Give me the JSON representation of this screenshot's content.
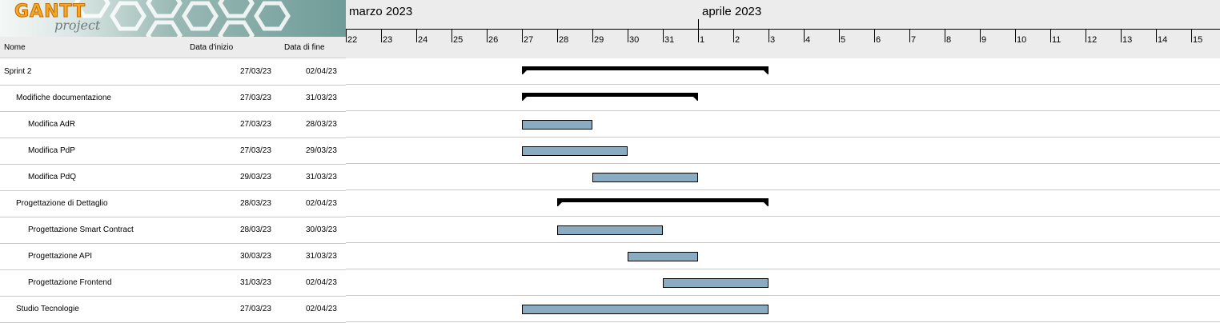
{
  "logo": {
    "word1": "GANTT",
    "word2": "project"
  },
  "table": {
    "headers": {
      "name": "Nome",
      "start": "Data d'inizio",
      "end": "Data di fine"
    },
    "rows": [
      {
        "name": "Sprint 2",
        "start": "27/03/23",
        "end": "02/04/23",
        "level": 0,
        "summary": true
      },
      {
        "name": "Modifiche documentazione",
        "start": "27/03/23",
        "end": "31/03/23",
        "level": 1,
        "summary": true
      },
      {
        "name": "Modifica AdR",
        "start": "27/03/23",
        "end": "28/03/23",
        "level": 2,
        "summary": false
      },
      {
        "name": "Modifica PdP",
        "start": "27/03/23",
        "end": "29/03/23",
        "level": 2,
        "summary": false
      },
      {
        "name": "Modifica PdQ",
        "start": "29/03/23",
        "end": "31/03/23",
        "level": 2,
        "summary": false
      },
      {
        "name": "Progettazione di Dettaglio",
        "start": "28/03/23",
        "end": "02/04/23",
        "level": 1,
        "summary": true
      },
      {
        "name": "Progettazione Smart Contract",
        "start": "28/03/23",
        "end": "30/03/23",
        "level": 2,
        "summary": false
      },
      {
        "name": "Progettazione API",
        "start": "30/03/23",
        "end": "31/03/23",
        "level": 2,
        "summary": false
      },
      {
        "name": "Progettazione Frontend",
        "start": "31/03/23",
        "end": "02/04/23",
        "level": 2,
        "summary": false
      },
      {
        "name": "Studio Tecnologie",
        "start": "27/03/23",
        "end": "02/04/23",
        "level": 1,
        "summary": false
      }
    ]
  },
  "timeline": {
    "months": [
      "marzo 2023",
      "aprile 2023"
    ],
    "days": [
      "22",
      "23",
      "24",
      "25",
      "26",
      "27",
      "28",
      "29",
      "30",
      "31",
      "1",
      "2",
      "3",
      "4",
      "5",
      "6",
      "7",
      "8",
      "9",
      "10",
      "11",
      "12",
      "13",
      "14",
      "15"
    ]
  },
  "colors": {
    "task_bar": "#8aacc3",
    "summary_bar": "#000000",
    "header_bg": "#ececec"
  }
}
